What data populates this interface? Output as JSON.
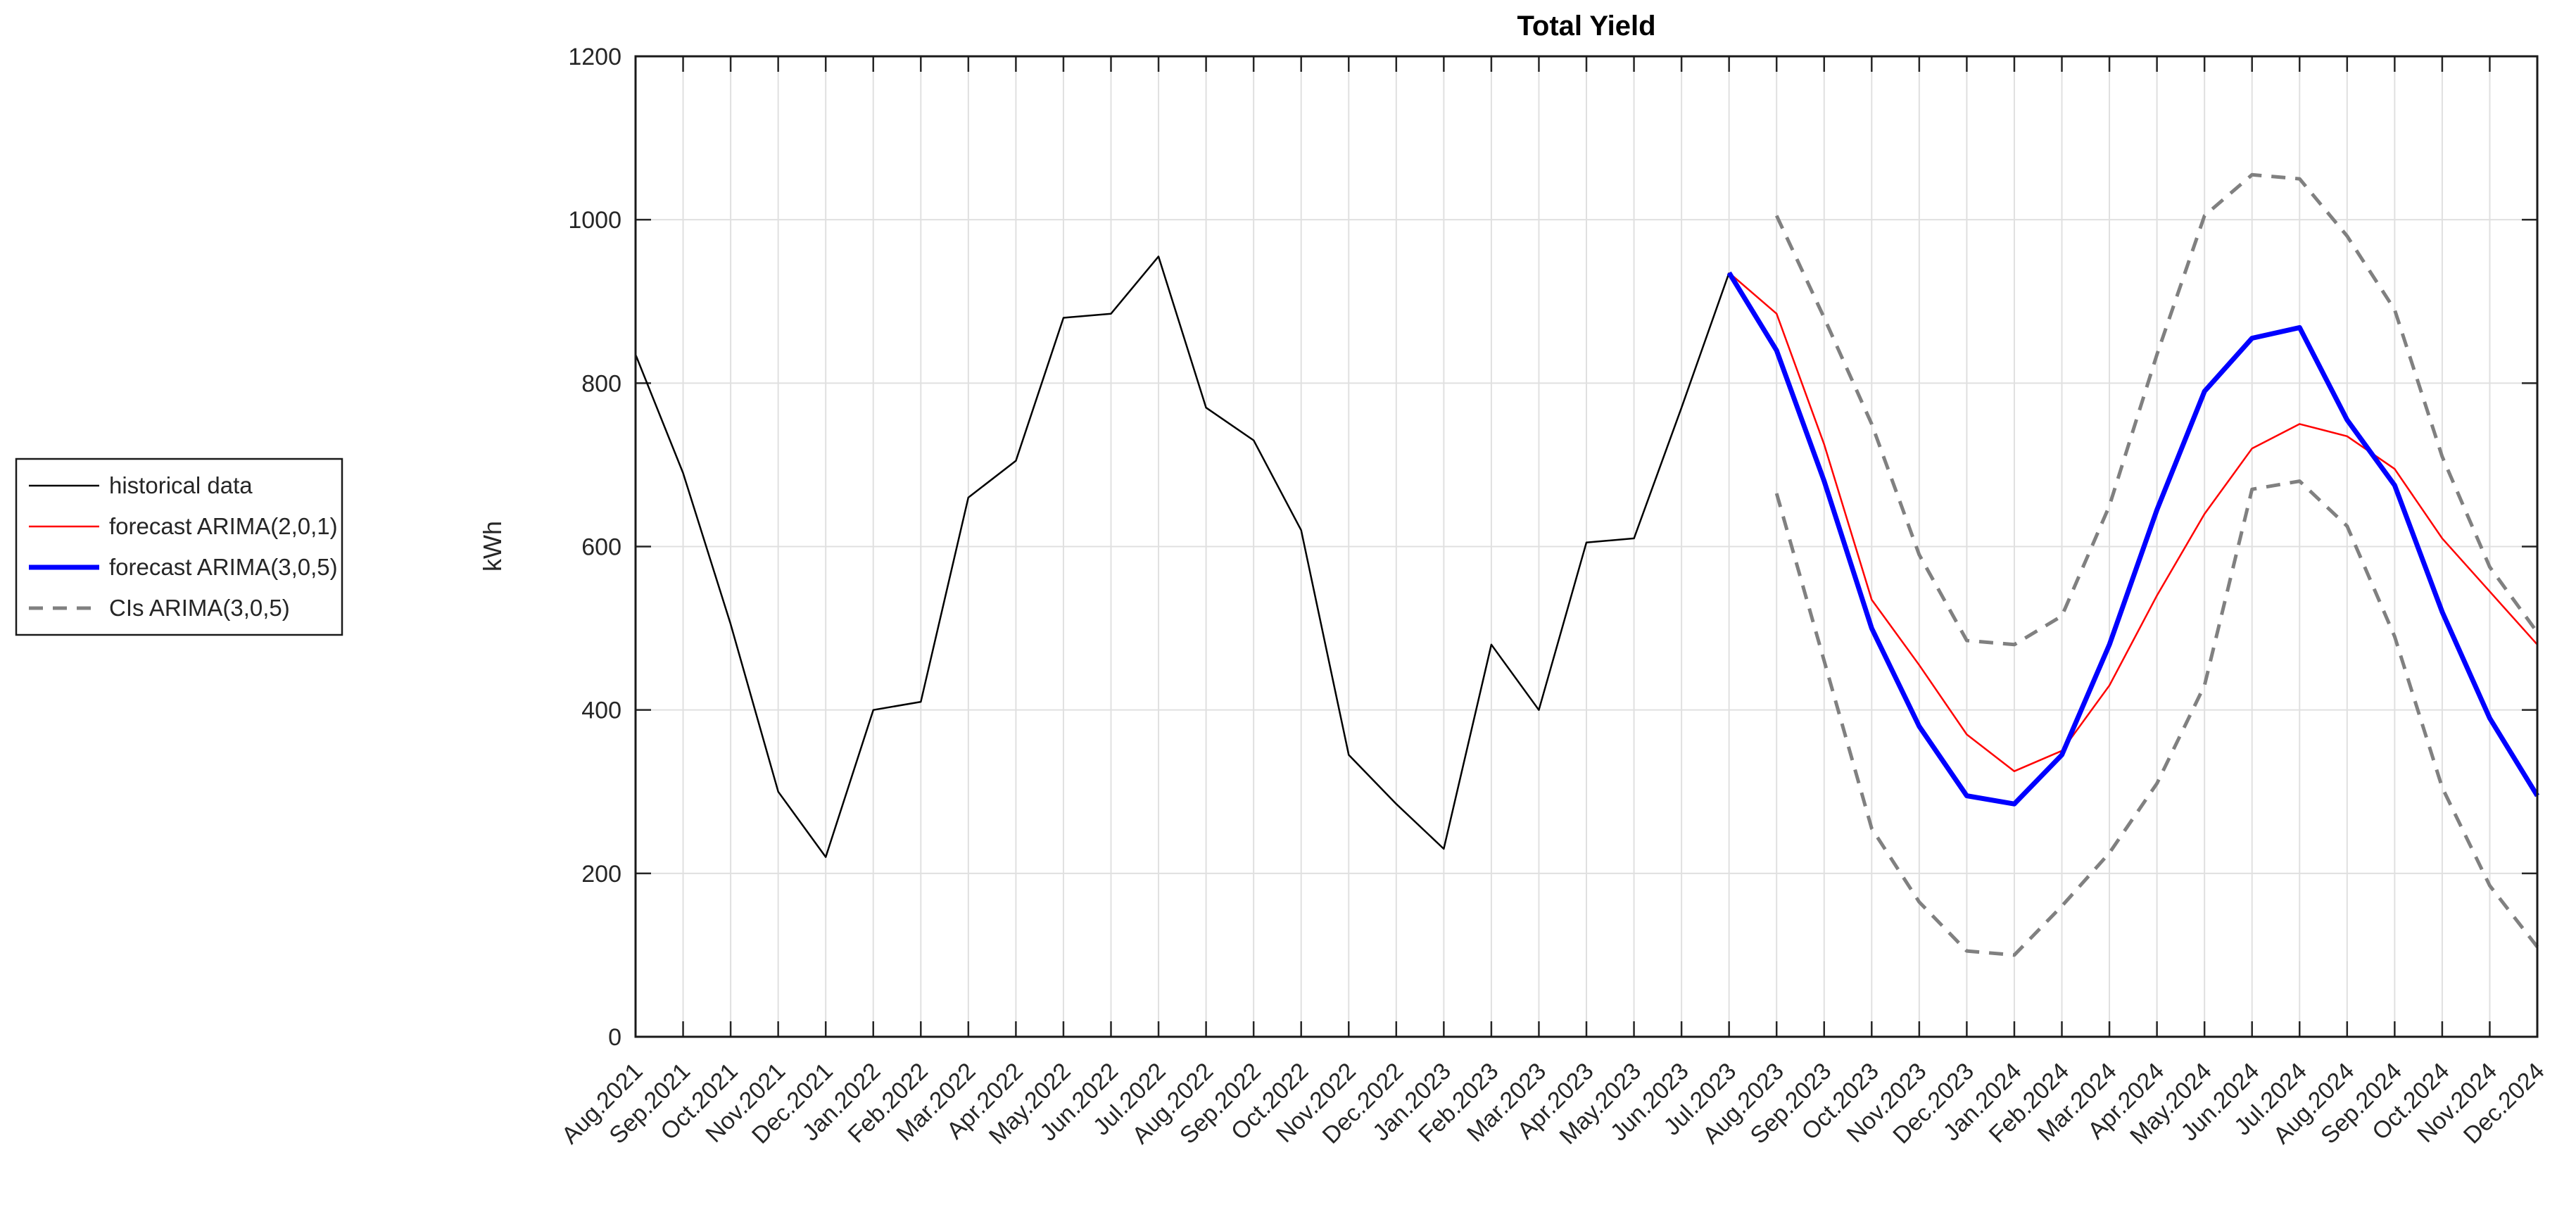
{
  "page": {
    "background": "#ffffff"
  },
  "chart_data": {
    "type": "line",
    "title": "Total Yield",
    "xlabel": "",
    "ylabel": "kWh",
    "ylim": [
      0,
      1200
    ],
    "yticks": [
      0,
      200,
      400,
      600,
      800,
      1000,
      1200
    ],
    "grid": true,
    "legend_position": "outside-left",
    "categories": [
      "Aug.2021",
      "Sep.2021",
      "Oct.2021",
      "Nov.2021",
      "Dec.2021",
      "Jan.2022",
      "Feb.2022",
      "Mar.2022",
      "Apr.2022",
      "May.2022",
      "Jun.2022",
      "Jul.2022",
      "Aug.2022",
      "Sep.2022",
      "Oct.2022",
      "Nov.2022",
      "Dec.2022",
      "Jan.2023",
      "Feb.2023",
      "Mar.2023",
      "Apr.2023",
      "May.2023",
      "Jun.2023",
      "Jul.2023",
      "Aug.2023",
      "Sep.2023",
      "Oct.2023",
      "Nov.2023",
      "Dec.2023",
      "Jan.2024",
      "Feb.2024",
      "Mar.2024",
      "Apr.2024",
      "May.2024",
      "Jun.2024",
      "Jul.2024",
      "Aug.2024",
      "Sep.2024",
      "Oct.2024",
      "Nov.2024",
      "Dec.2024"
    ],
    "series": [
      {
        "name": "historical data",
        "color": "#000000",
        "width": 2.5,
        "dash": null,
        "start_index": 0,
        "values": [
          835,
          690,
          505,
          300,
          220,
          400,
          410,
          660,
          705,
          880,
          885,
          955,
          770,
          730,
          620,
          345,
          285,
          230,
          480,
          400,
          605,
          610,
          770,
          935
        ]
      },
      {
        "name": "forecast ARIMA(2,0,1)",
        "color": "#ff0000",
        "width": 2.5,
        "dash": null,
        "start_index": 23,
        "values": [
          935,
          885,
          725,
          535,
          455,
          370,
          325,
          350,
          430,
          540,
          640,
          720,
          750,
          735,
          695,
          610,
          545,
          480
        ]
      },
      {
        "name": "forecast ARIMA(3,0,5)",
        "color": "#0000ff",
        "width": 7,
        "dash": null,
        "start_index": 23,
        "values": [
          935,
          840,
          680,
          500,
          380,
          295,
          285,
          345,
          480,
          645,
          790,
          855,
          868,
          755,
          675,
          520,
          390,
          295
        ]
      },
      {
        "name": "CIs ARIMA(3,0,5) upper",
        "color": "#808080",
        "width": 5,
        "dash": "20 14",
        "start_index": 24,
        "values": [
          1005,
          880,
          750,
          590,
          485,
          480,
          515,
          650,
          835,
          1005,
          1055,
          1050,
          980,
          890,
          710,
          575,
          495
        ]
      },
      {
        "name": "CIs ARIMA(3,0,5) lower",
        "color": "#808080",
        "width": 5,
        "dash": "20 14",
        "start_index": 24,
        "values": [
          665,
          460,
          255,
          165,
          105,
          100,
          160,
          225,
          310,
          430,
          670,
          680,
          625,
          490,
          305,
          185,
          110
        ]
      }
    ],
    "legend": [
      {
        "label": "historical data",
        "color": "#000000",
        "width": 2.5,
        "dash": null
      },
      {
        "label": "forecast ARIMA(2,0,1)",
        "color": "#ff0000",
        "width": 2.5,
        "dash": null
      },
      {
        "label": "forecast ARIMA(3,0,5)",
        "color": "#0000ff",
        "width": 7,
        "dash": null
      },
      {
        "label": "CIs ARIMA(3,0,5)",
        "color": "#808080",
        "width": 5,
        "dash": "20 14"
      }
    ]
  }
}
